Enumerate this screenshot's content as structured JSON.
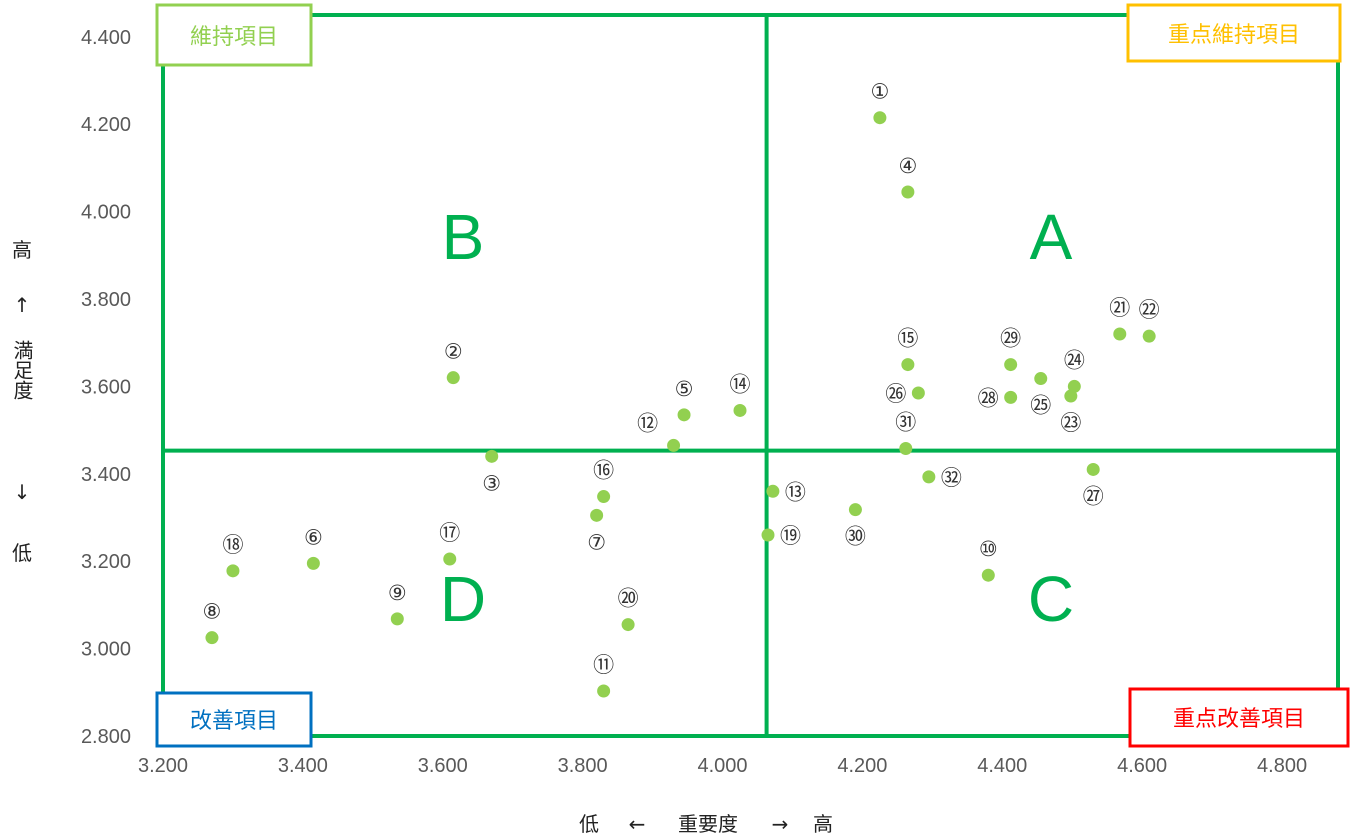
{
  "chart_data": {
    "type": "scatter",
    "xlabel": {
      "low": "低",
      "arrow_left": "←",
      "name": "重要度",
      "arrow_right": "→",
      "high": "高"
    },
    "ylabel": {
      "high": "高",
      "arrow_up": "↑",
      "name": "満足度",
      "arrow_down": "↓",
      "low": "低"
    },
    "xlim": [
      3.2,
      4.88
    ],
    "ylim": [
      2.8,
      4.45
    ],
    "x_ticks": [
      "3.200",
      "3.400",
      "3.600",
      "3.800",
      "4.000",
      "4.200",
      "4.400",
      "4.600",
      "4.800"
    ],
    "y_ticks": [
      "2.800",
      "3.000",
      "3.200",
      "3.400",
      "3.600",
      "3.800",
      "4.000",
      "4.200",
      "4.400"
    ],
    "divider": {
      "x": 4.063,
      "y": 3.453
    },
    "quadrant_letters": {
      "A": "A",
      "B": "B",
      "C": "C",
      "D": "D"
    },
    "categories": {
      "top_left": {
        "text": "維持項目",
        "color": "#92d050"
      },
      "top_right": {
        "text": "重点維持項目",
        "color": "#ffc000"
      },
      "bottom_left": {
        "text": "改善項目",
        "color": "#0070c0"
      },
      "bottom_right": {
        "text": "重点改善項目",
        "color": "#ff0000"
      }
    },
    "colors": {
      "frame": "#00b050",
      "point": "#92d050"
    },
    "points": [
      {
        "label": "①",
        "x": 4.225,
        "y": 4.215,
        "pos": "above"
      },
      {
        "label": "②",
        "x": 3.615,
        "y": 3.62,
        "pos": "above"
      },
      {
        "label": "③",
        "x": 3.67,
        "y": 3.44,
        "pos": "below"
      },
      {
        "label": "④",
        "x": 4.265,
        "y": 4.045,
        "pos": "above"
      },
      {
        "label": "⑤",
        "x": 3.945,
        "y": 3.535,
        "pos": "above"
      },
      {
        "label": "⑥",
        "x": 3.415,
        "y": 3.195,
        "pos": "above"
      },
      {
        "label": "⑦",
        "x": 3.82,
        "y": 3.305,
        "pos": "below"
      },
      {
        "label": "⑧",
        "x": 3.27,
        "y": 3.025,
        "pos": "above"
      },
      {
        "label": "⑨",
        "x": 3.535,
        "y": 3.068,
        "pos": "above"
      },
      {
        "label": "⑩",
        "x": 4.38,
        "y": 3.168,
        "pos": "above"
      },
      {
        "label": "⑪",
        "x": 3.83,
        "y": 2.903,
        "pos": "above"
      },
      {
        "label": "⑫",
        "x": 3.93,
        "y": 3.465,
        "pos": "upper-left"
      },
      {
        "label": "⑬",
        "x": 4.072,
        "y": 3.36,
        "pos": "right"
      },
      {
        "label": "⑭",
        "x": 4.025,
        "y": 3.545,
        "pos": "above"
      },
      {
        "label": "⑮",
        "x": 4.265,
        "y": 3.65,
        "pos": "above"
      },
      {
        "label": "⑯",
        "x": 3.83,
        "y": 3.348,
        "pos": "above"
      },
      {
        "label": "⑰",
        "x": 3.61,
        "y": 3.205,
        "pos": "above"
      },
      {
        "label": "⑱",
        "x": 3.3,
        "y": 3.178,
        "pos": "above"
      },
      {
        "label": "⑲",
        "x": 4.065,
        "y": 3.26,
        "pos": "right"
      },
      {
        "label": "⑳",
        "x": 3.865,
        "y": 3.055,
        "pos": "above"
      },
      {
        "label": "㉑",
        "x": 4.568,
        "y": 3.72,
        "pos": "above"
      },
      {
        "label": "㉒",
        "x": 4.61,
        "y": 3.715,
        "pos": "above"
      },
      {
        "label": "㉓",
        "x": 4.498,
        "y": 3.578,
        "pos": "below"
      },
      {
        "label": "㉔",
        "x": 4.503,
        "y": 3.6,
        "pos": "above"
      },
      {
        "label": "㉕",
        "x": 4.455,
        "y": 3.618,
        "pos": "below"
      },
      {
        "label": "㉖",
        "x": 4.28,
        "y": 3.585,
        "pos": "left"
      },
      {
        "label": "㉗",
        "x": 4.53,
        "y": 3.41,
        "pos": "below"
      },
      {
        "label": "㉘",
        "x": 4.412,
        "y": 3.575,
        "pos": "left"
      },
      {
        "label": "㉙",
        "x": 4.412,
        "y": 3.65,
        "pos": "above"
      },
      {
        "label": "㉚",
        "x": 4.19,
        "y": 3.318,
        "pos": "below"
      },
      {
        "label": "㉛",
        "x": 4.262,
        "y": 3.458,
        "pos": "above"
      },
      {
        "label": "㉜",
        "x": 4.295,
        "y": 3.393,
        "pos": "right"
      }
    ]
  }
}
